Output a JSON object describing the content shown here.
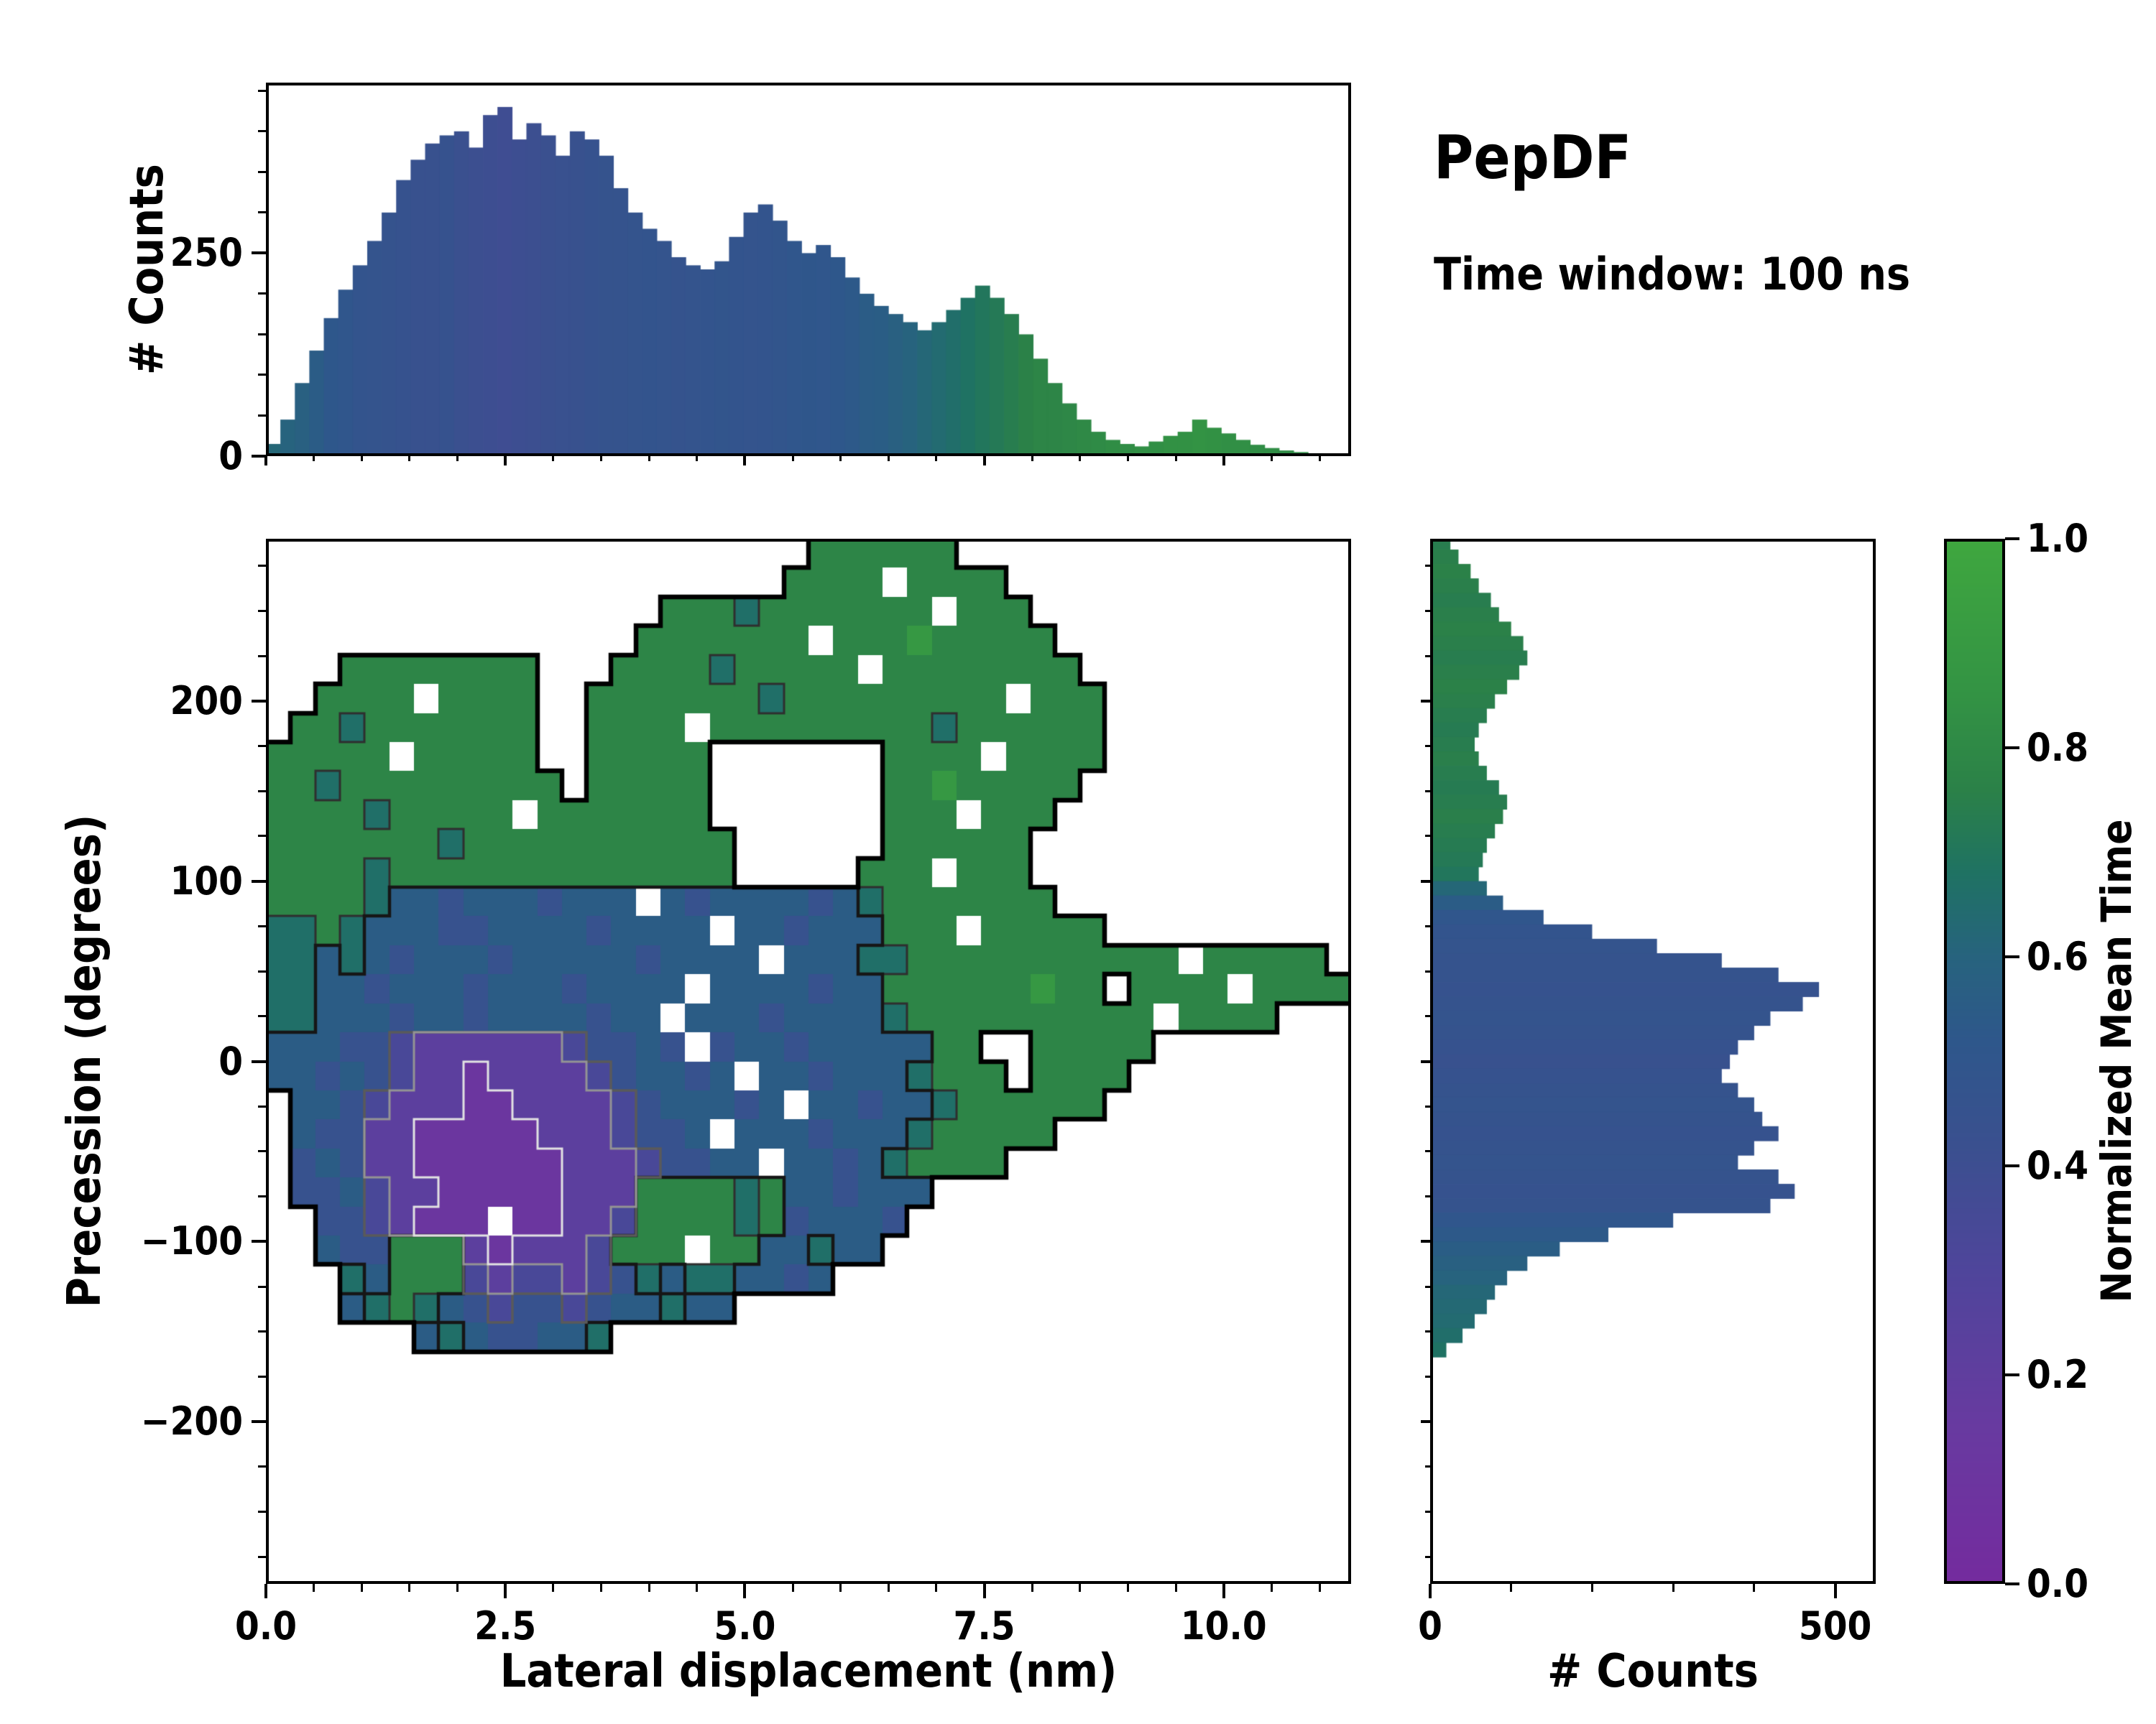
{
  "header": {
    "title": "PepDF",
    "subtitle": "Time window: 100 ns"
  },
  "colors": {
    "background": "#ffffff",
    "text": "#000000",
    "spine": "#000000",
    "colormap_stops": [
      [
        0,
        "#742b9e"
      ],
      [
        0.15,
        "#683aa0"
      ],
      [
        0.3,
        "#4f459b"
      ],
      [
        0.42,
        "#3a508f"
      ],
      [
        0.52,
        "#2e578b"
      ],
      [
        0.6,
        "#27637e"
      ],
      [
        0.68,
        "#1f7263"
      ],
      [
        0.76,
        "#2b8148"
      ],
      [
        0.85,
        "#339344"
      ],
      [
        1,
        "#3fa73f"
      ]
    ]
  },
  "chart_data": [
    {
      "type": "bar",
      "id": "top_marginal_histogram",
      "ylabel": "# Counts",
      "x_range": [
        0,
        11.33
      ],
      "y_range": [
        0,
        460
      ],
      "y_ticks": [
        0,
        250
      ],
      "y_tick_labels": [
        "0",
        "250"
      ],
      "y_minor_tick_step": 50,
      "bin_width": 0.1511,
      "values": [
        15,
        45,
        90,
        130,
        170,
        205,
        235,
        265,
        300,
        340,
        365,
        385,
        395,
        400,
        380,
        420,
        430,
        390,
        410,
        395,
        370,
        400,
        390,
        370,
        330,
        300,
        280,
        265,
        245,
        235,
        230,
        240,
        270,
        300,
        310,
        290,
        265,
        250,
        260,
        245,
        220,
        200,
        185,
        175,
        165,
        155,
        165,
        180,
        195,
        210,
        195,
        175,
        150,
        120,
        90,
        65,
        45,
        30,
        20,
        15,
        12,
        18,
        25,
        30,
        45,
        35,
        28,
        20,
        14,
        10,
        7,
        5,
        3,
        2,
        1
      ],
      "color_values": [
        0.62,
        0.6,
        0.58,
        0.55,
        0.52,
        0.5,
        0.48,
        0.47,
        0.46,
        0.45,
        0.44,
        0.44,
        0.45,
        0.42,
        0.41,
        0.4,
        0.39,
        0.4,
        0.41,
        0.42,
        0.43,
        0.44,
        0.45,
        0.46,
        0.46,
        0.47,
        0.48,
        0.47,
        0.46,
        0.47,
        0.48,
        0.49,
        0.48,
        0.47,
        0.48,
        0.49,
        0.5,
        0.51,
        0.5,
        0.52,
        0.53,
        0.55,
        0.56,
        0.58,
        0.6,
        0.62,
        0.64,
        0.66,
        0.68,
        0.7,
        0.72,
        0.74,
        0.76,
        0.78,
        0.78,
        0.79,
        0.8,
        0.81,
        0.82,
        0.82,
        0.83,
        0.83,
        0.84,
        0.84,
        0.85,
        0.84,
        0.83,
        0.83,
        0.82,
        0.82,
        0.81,
        0.81,
        0.8,
        0.8,
        0.8
      ]
    },
    {
      "type": "heatmap",
      "id": "main_2d_histogram",
      "xlabel": "Lateral displacement (nm)",
      "ylabel": "Precession (degrees)",
      "x_range": [
        0,
        11.33
      ],
      "y_range": [
        -290,
        290
      ],
      "x_ticks": [
        0,
        2.5,
        5,
        7.5,
        10
      ],
      "x_tick_labels": [
        "0.0",
        "2.5",
        "5.0",
        "7.5",
        "10.0"
      ],
      "x_minor_tick_step": 0.5,
      "y_ticks": [
        -200,
        -100,
        0,
        100,
        200
      ],
      "y_tick_labels": [
        "−200",
        "−100",
        "0",
        "100",
        "200"
      ],
      "y_minor_tick_step": 25,
      "grid_cols": 44,
      "grid_rows": 36,
      "value_encoding": "each char is one cell: digit d => normalized mean time d/9; '.' = no data (white); 'w' = white missing-data speckle inside the populated region",
      "contour_note": "density contour lines overlaid: thick black outline around populated region, dark contour around blue (mid-time) region, gray and light-gray contours around the purple (early-time) density core",
      "rows": [
        "......................777777................",
        ".....................7777w7777..............",
        "................77767777777w777.............",
        "...............7777777w777877777............",
        "...77777777...7777677777w77777777...........",
        "..7777w7777..77777776777777777w777..........",
        ".7767777777..7777w7777777776777777..........",
        "77777w77777..77777.......7777w7777..........",
        "776777777777.77777.......77877777...........",
        "7777677777w7777777.......777w777............",
        "7777777677777777777......777777.............",
        "7777677777777777777.....777w777.............",
        "777765545554555w5455554567777777............",
        "667655544555545555w554555777w77777..........",
        "66565455545555545555w5556677777777777w77777.",
        "66554555455545555w5555455777777877.7777w7777",
        "6655545545555455w5554555567777777777w7777...",
        "55544322222234454w45545555577..77777........",
        "5545432212222345545w5545556777.7777.........",
        ".55432221122223455545w554556777777..........",
        ".54422111112223445w5554555677777............",
        ".4542211111122234455w554567777..............",
        ".44532211111222777767554555.................",
        "..4432111w1122377776745554..................",
        "..544777212223777w7755655...................",
        "...65777323323465665545.....................",
        "...5676543443455655.........................",
        "......56544556..............................",
        "............................................",
        "............................................",
        "............................................",
        "............................................",
        "............................................",
        "............................................",
        "............................................",
        "............................................"
      ]
    },
    {
      "type": "bar",
      "id": "right_marginal_histogram",
      "orientation": "horizontal",
      "xlabel": "# Counts",
      "x_range": [
        0,
        550
      ],
      "x_ticks": [
        0,
        500
      ],
      "x_tick_labels": [
        "0",
        "500"
      ],
      "x_minor_tick_step": 100,
      "y_range": [
        -290,
        290
      ],
      "y_top": 292,
      "bin_height": 8,
      "values": [
        25,
        35,
        50,
        60,
        75,
        85,
        100,
        115,
        120,
        110,
        95,
        80,
        70,
        60,
        55,
        60,
        70,
        85,
        95,
        90,
        80,
        70,
        65,
        60,
        70,
        90,
        140,
        200,
        280,
        360,
        430,
        480,
        460,
        420,
        400,
        380,
        370,
        360,
        380,
        400,
        410,
        430,
        400,
        380,
        430,
        450,
        420,
        300,
        220,
        160,
        120,
        95,
        80,
        70,
        55,
        40,
        20
      ],
      "color_values": [
        0.74,
        0.75,
        0.76,
        0.75,
        0.74,
        0.75,
        0.76,
        0.75,
        0.74,
        0.75,
        0.76,
        0.75,
        0.74,
        0.73,
        0.74,
        0.75,
        0.74,
        0.73,
        0.74,
        0.75,
        0.74,
        0.73,
        0.72,
        0.7,
        0.62,
        0.55,
        0.5,
        0.48,
        0.47,
        0.46,
        0.46,
        0.45,
        0.46,
        0.47,
        0.46,
        0.45,
        0.44,
        0.45,
        0.46,
        0.47,
        0.46,
        0.45,
        0.46,
        0.47,
        0.46,
        0.45,
        0.46,
        0.5,
        0.53,
        0.56,
        0.58,
        0.6,
        0.62,
        0.63,
        0.64,
        0.66,
        0.68
      ]
    },
    {
      "type": "colorbar",
      "id": "colorbar",
      "label": "Normalized Mean Time",
      "range": [
        0,
        1
      ],
      "ticks": [
        0,
        0.2,
        0.4,
        0.6,
        0.8,
        1.0
      ],
      "tick_labels": [
        "0.0",
        "0.2",
        "0.4",
        "0.6",
        "0.8",
        "1.0"
      ]
    }
  ]
}
